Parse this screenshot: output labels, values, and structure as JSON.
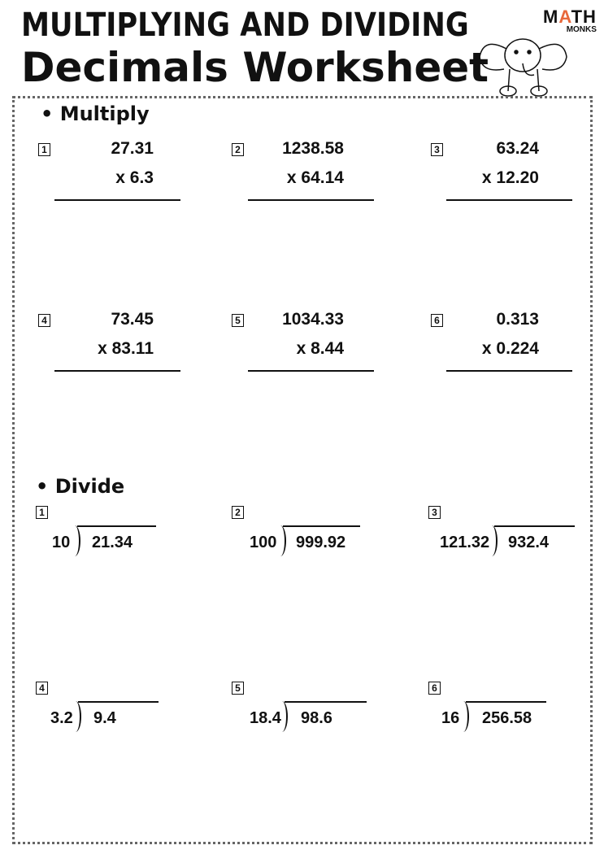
{
  "header": {
    "title_line1": "MULTIPLYING AND DIVIDING",
    "title_line2": "Decimals Worksheet",
    "logo_top": "MATH",
    "logo_bottom": "MONKS",
    "logo_accent": "#e8673a"
  },
  "multiply": {
    "heading": "• Multiply",
    "problems": [
      {
        "n": "1",
        "a": "27.31",
        "b": "x  6.3"
      },
      {
        "n": "2",
        "a": "1238.58",
        "b": "x  64.14"
      },
      {
        "n": "3",
        "a": "63.24",
        "b": "x 12.20"
      },
      {
        "n": "4",
        "a": "73.45",
        "b": "x  83.11"
      },
      {
        "n": "5",
        "a": "1034.33",
        "b": "x  8.44"
      },
      {
        "n": "6",
        "a": "0.313",
        "b": "x 0.224"
      }
    ]
  },
  "divide": {
    "heading": "• Divide",
    "problems": [
      {
        "n": "1",
        "divisor": "10",
        "dividend": "21.34"
      },
      {
        "n": "2",
        "divisor": "100",
        "dividend": "999.92"
      },
      {
        "n": "3",
        "divisor": "121.32",
        "dividend": "932.4"
      },
      {
        "n": "4",
        "divisor": "3.2",
        "dividend": "9.4"
      },
      {
        "n": "5",
        "divisor": "18.4",
        "dividend": "98.6"
      },
      {
        "n": "6",
        "divisor": "16",
        "dividend": "256.58"
      }
    ]
  }
}
